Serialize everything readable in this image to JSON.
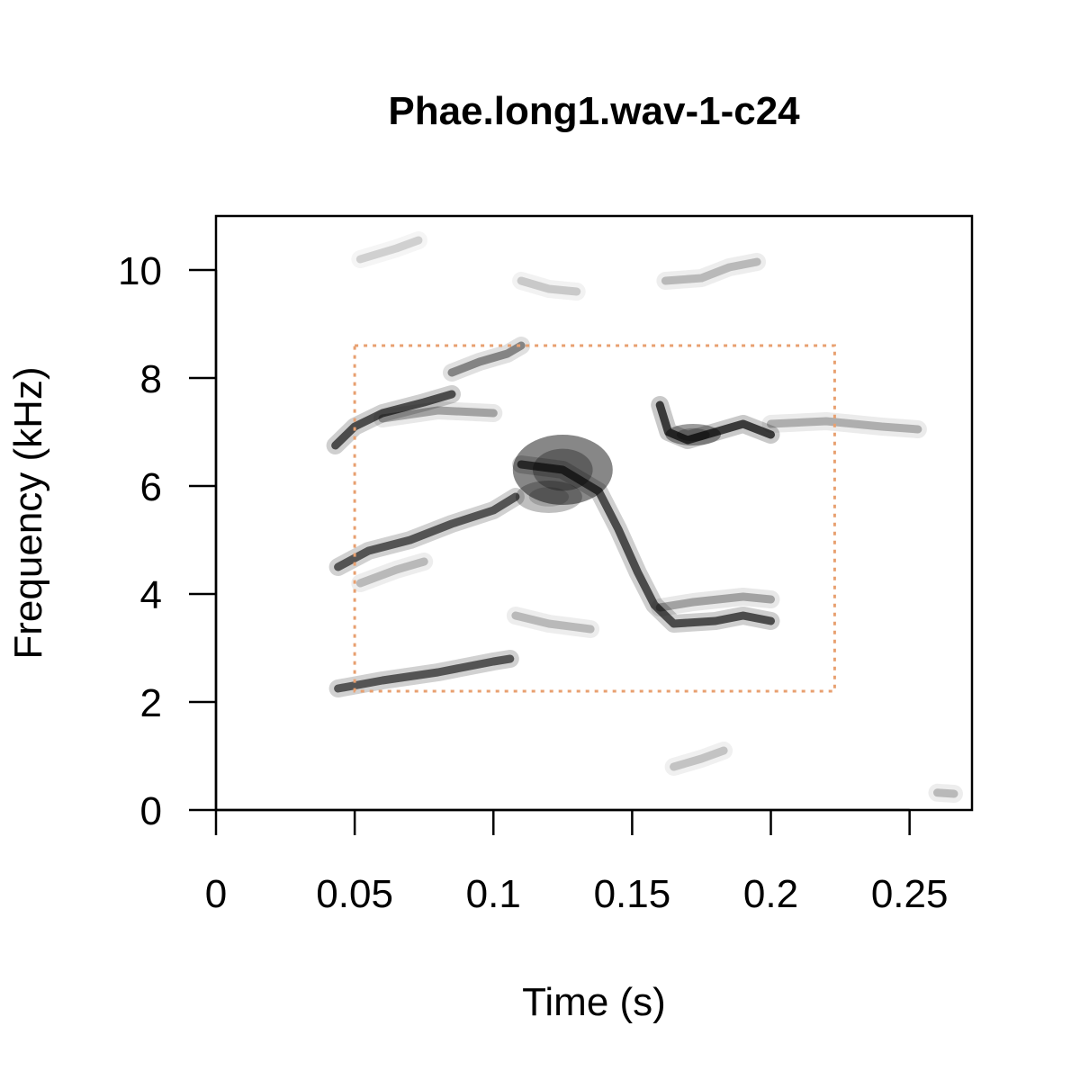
{
  "chart_data": {
    "type": "heatmap",
    "title": "Phae.long1.wav-1-c24",
    "xlabel": "Time (s)",
    "ylabel": "Frequency (kHz)",
    "xlim": [
      0,
      0.2725
    ],
    "ylim": [
      0,
      11
    ],
    "x_ticks": [
      0,
      0.05,
      0.1,
      0.15,
      0.2,
      0.25
    ],
    "x_tick_labels": [
      "0",
      "0.05",
      "0.1",
      "0.15",
      "0.2",
      "0.25"
    ],
    "y_ticks": [
      0,
      2,
      4,
      6,
      8,
      10
    ],
    "y_tick_labels": [
      "0",
      "2",
      "4",
      "6",
      "8",
      "10"
    ],
    "grid": false,
    "selection_box": {
      "t_start": 0.05,
      "t_end": 0.223,
      "f_low": 2.2,
      "f_high": 8.6,
      "color": "#E8A070"
    },
    "traces": [
      {
        "name": "harmonic-low",
        "intensity": 0.8,
        "points": [
          [
            0.044,
            2.25
          ],
          [
            0.06,
            2.4
          ],
          [
            0.08,
            2.55
          ],
          [
            0.1,
            2.75
          ],
          [
            0.106,
            2.8
          ]
        ]
      },
      {
        "name": "harmonic-mid-rise",
        "intensity": 0.8,
        "points": [
          [
            0.044,
            4.5
          ],
          [
            0.055,
            4.8
          ],
          [
            0.07,
            5.0
          ],
          [
            0.085,
            5.3
          ],
          [
            0.1,
            5.55
          ],
          [
            0.108,
            5.8
          ]
        ]
      },
      {
        "name": "harmonic-mid-sub",
        "intensity": 0.3,
        "points": [
          [
            0.052,
            4.2
          ],
          [
            0.065,
            4.45
          ],
          [
            0.075,
            4.6
          ]
        ]
      },
      {
        "name": "harmonic-high-rise",
        "intensity": 0.85,
        "points": [
          [
            0.043,
            6.75
          ],
          [
            0.05,
            7.1
          ],
          [
            0.06,
            7.35
          ],
          [
            0.075,
            7.55
          ],
          [
            0.085,
            7.7
          ]
        ]
      },
      {
        "name": "harmonic-high-sub",
        "intensity": 0.4,
        "points": [
          [
            0.06,
            7.25
          ],
          [
            0.08,
            7.4
          ],
          [
            0.1,
            7.35
          ]
        ]
      },
      {
        "name": "top-fragment",
        "intensity": 0.55,
        "points": [
          [
            0.085,
            8.1
          ],
          [
            0.095,
            8.3
          ],
          [
            0.105,
            8.45
          ],
          [
            0.11,
            8.6
          ]
        ]
      },
      {
        "name": "descent-main",
        "intensity": 0.85,
        "points": [
          [
            0.11,
            6.4
          ],
          [
            0.125,
            6.3
          ],
          [
            0.138,
            5.9
          ],
          [
            0.145,
            5.2
          ],
          [
            0.152,
            4.4
          ],
          [
            0.158,
            3.8
          ],
          [
            0.165,
            3.45
          ],
          [
            0.18,
            3.5
          ],
          [
            0.19,
            3.6
          ],
          [
            0.2,
            3.5
          ]
        ]
      },
      {
        "name": "descent-upper",
        "intensity": 0.4,
        "points": [
          [
            0.16,
            3.75
          ],
          [
            0.172,
            3.85
          ],
          [
            0.19,
            3.95
          ],
          [
            0.2,
            3.9
          ]
        ]
      },
      {
        "name": "right-segment",
        "intensity": 0.95,
        "points": [
          [
            0.16,
            7.5
          ],
          [
            0.163,
            7.0
          ],
          [
            0.17,
            6.85
          ],
          [
            0.18,
            7.0
          ],
          [
            0.19,
            7.15
          ],
          [
            0.2,
            6.95
          ]
        ]
      },
      {
        "name": "right-tail",
        "intensity": 0.35,
        "points": [
          [
            0.2,
            7.15
          ],
          [
            0.22,
            7.2
          ],
          [
            0.24,
            7.1
          ],
          [
            0.253,
            7.05
          ]
        ]
      },
      {
        "name": "upper-right-fragment",
        "intensity": 0.3,
        "points": [
          [
            0.162,
            9.8
          ],
          [
            0.175,
            9.85
          ],
          [
            0.185,
            10.05
          ],
          [
            0.195,
            10.15
          ]
        ]
      },
      {
        "name": "upper-left-fragment",
        "intensity": 0.2,
        "points": [
          [
            0.052,
            10.2
          ],
          [
            0.065,
            10.4
          ],
          [
            0.073,
            10.55
          ]
        ]
      },
      {
        "name": "upper-mid-fragment",
        "intensity": 0.22,
        "points": [
          [
            0.11,
            9.8
          ],
          [
            0.12,
            9.65
          ],
          [
            0.13,
            9.6
          ]
        ]
      },
      {
        "name": "low-freq-fragment",
        "intensity": 0.25,
        "points": [
          [
            0.165,
            0.8
          ],
          [
            0.175,
            0.95
          ],
          [
            0.183,
            1.1
          ]
        ]
      },
      {
        "name": "mid-low-fragment",
        "intensity": 0.3,
        "points": [
          [
            0.108,
            3.6
          ],
          [
            0.12,
            3.45
          ],
          [
            0.135,
            3.35
          ]
        ]
      },
      {
        "name": "corner-blip",
        "intensity": 0.3,
        "points": [
          [
            0.26,
            0.32
          ],
          [
            0.266,
            0.3
          ]
        ]
      }
    ],
    "blobs": [
      {
        "name": "dense-core",
        "t": 0.125,
        "f": 6.3,
        "rt": 0.018,
        "rf": 0.65,
        "intensity": 0.85
      },
      {
        "name": "core-lower",
        "t": 0.12,
        "f": 5.8,
        "rt": 0.012,
        "rf": 0.3,
        "intensity": 0.45
      },
      {
        "name": "right-segment-core",
        "t": 0.172,
        "f": 6.95,
        "rt": 0.01,
        "rf": 0.2,
        "intensity": 0.7
      }
    ]
  }
}
